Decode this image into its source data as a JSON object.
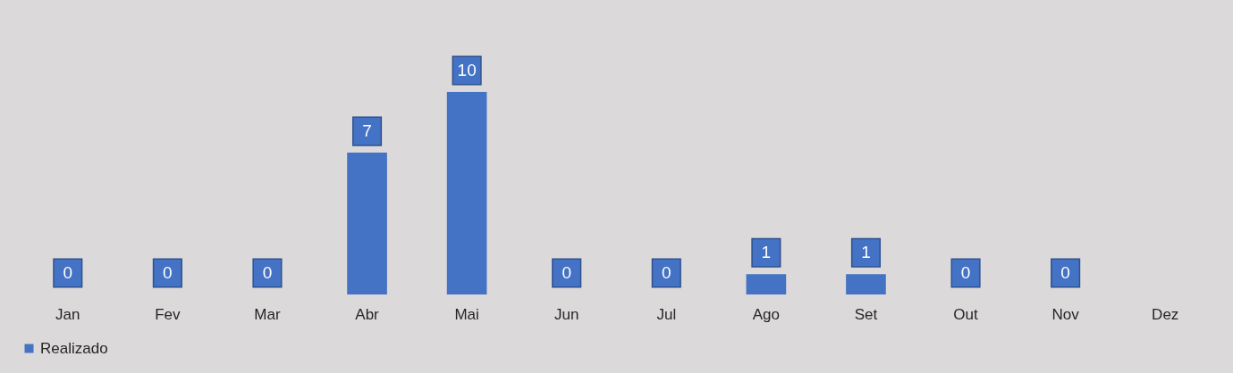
{
  "chart_data": {
    "type": "bar",
    "categories": [
      "Jan",
      "Fev",
      "Mar",
      "Abr",
      "Mai",
      "Jun",
      "Jul",
      "Ago",
      "Set",
      "Out",
      "Nov",
      "Dez"
    ],
    "series": [
      {
        "name": "Realizado",
        "color": "#4472c4",
        "values": [
          0,
          0,
          0,
          7,
          10,
          0,
          0,
          1,
          1,
          0,
          0,
          null
        ]
      }
    ],
    "data_labels": true,
    "legend": "bottom",
    "tick_labels": "x"
  }
}
